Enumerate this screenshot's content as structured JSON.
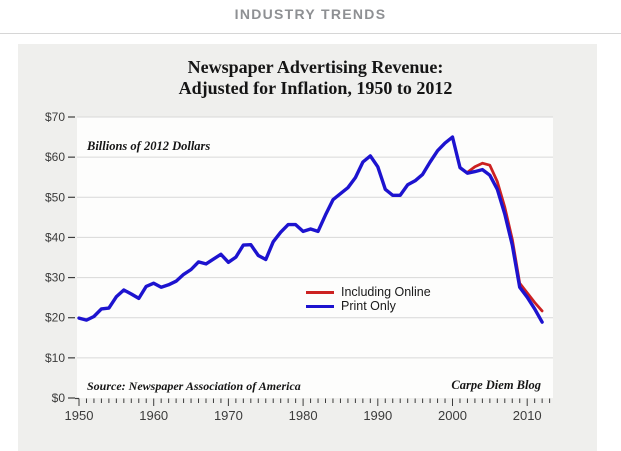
{
  "header": {
    "title": "INDUSTRY TRENDS"
  },
  "colors": {
    "chart_bg": "#efefed",
    "plot_bg": "#fdfdfc",
    "gridline": "#d8d8d8",
    "axis_text": "#3c3c3c",
    "header_text": "#8e9093",
    "including_online": "#cc2121",
    "print_only": "#1d13cf"
  },
  "chart": {
    "title_line1": "Newspaper Advertising Revenue:",
    "title_line2": "Adjusted for Inflation, 1950 to 2012",
    "annotation": "Billions of 2012 Dollars",
    "source": "Source: Newspaper Association of America",
    "credit": "Carpe Diem Blog",
    "chart_data": {
      "type": "line",
      "title": "Newspaper Advertising Revenue: Adjusted for Inflation, 1950 to 2012",
      "xlabel": "",
      "ylabel": "Billions of 2012 Dollars",
      "ylim": [
        0,
        70
      ],
      "ytick_step": 10,
      "ytick_labels": [
        "$0",
        "$10",
        "$20",
        "$30",
        "$40",
        "$50",
        "$60",
        "$70"
      ],
      "xlim": [
        1950,
        2013
      ],
      "xticks_major": [
        1950,
        1960,
        1970,
        1980,
        1990,
        2000,
        2010
      ],
      "xtick_labels": [
        "1950",
        "1960",
        "1970",
        "1980",
        "1990",
        "2000",
        "2010"
      ],
      "xticks_minor_every": 1,
      "grid": "horizontal",
      "legend_position": "inside-center-right",
      "series": [
        {
          "name": "Including Online",
          "color": "#cc2121",
          "x_start": 2002,
          "values": [
            56.2,
            57.6,
            58.5,
            58.0,
            53.9,
            47.5,
            39.5,
            28.6,
            26.2,
            23.8,
            21.7
          ]
        },
        {
          "name": "Print Only",
          "color": "#1d13cf",
          "x_start": 1950,
          "values": [
            19.9,
            19.4,
            20.3,
            22.2,
            22.4,
            25.2,
            26.9,
            25.9,
            24.8,
            27.8,
            28.6,
            27.6,
            28.2,
            29.1,
            30.8,
            32.0,
            33.9,
            33.4,
            34.6,
            35.8,
            33.8,
            35.1,
            38.1,
            38.2,
            35.5,
            34.5,
            38.9,
            41.3,
            43.2,
            43.2,
            41.5,
            42.1,
            41.5,
            45.6,
            49.4,
            50.9,
            52.4,
            54.9,
            58.8,
            60.3,
            57.6,
            52.0,
            50.5,
            50.5,
            53.1,
            54.1,
            55.7,
            58.8,
            61.6,
            63.5,
            65.0,
            57.4,
            56.0,
            56.4,
            56.9,
            55.5,
            52.0,
            45.8,
            38.1,
            27.6,
            25.1,
            22.2,
            18.9
          ]
        }
      ]
    }
  }
}
